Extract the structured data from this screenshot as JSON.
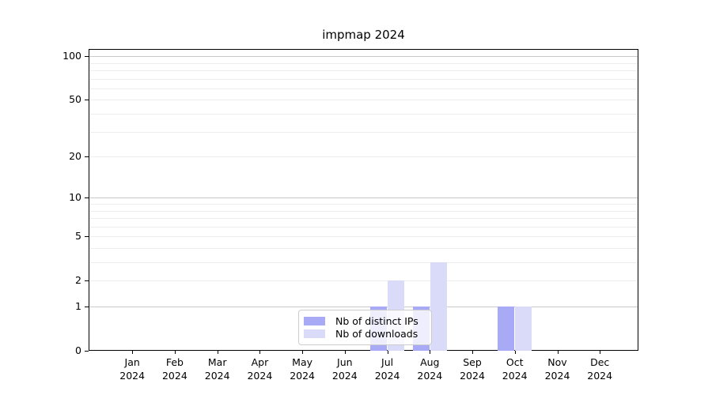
{
  "chart_data": {
    "type": "bar",
    "title": "impmap 2024",
    "categories": [
      "Jan 2024",
      "Feb 2024",
      "Mar 2024",
      "Apr 2024",
      "May 2024",
      "Jun 2024",
      "Jul 2024",
      "Aug 2024",
      "Sep 2024",
      "Oct 2024",
      "Nov 2024",
      "Dec 2024"
    ],
    "x_tick_months": [
      "Jan",
      "Feb",
      "Mar",
      "Apr",
      "May",
      "Jun",
      "Jul",
      "Aug",
      "Sep",
      "Oct",
      "Nov",
      "Dec"
    ],
    "x_tick_year": "2024",
    "series": [
      {
        "name": "Nb of distinct IPs",
        "color": "#a9aaf6",
        "values": [
          0,
          0,
          0,
          0,
          0,
          0,
          1,
          1,
          0,
          1,
          0,
          0
        ]
      },
      {
        "name": "Nb of downloads",
        "color": "#dadbf8",
        "values": [
          0,
          0,
          0,
          0,
          0,
          0,
          2,
          3,
          0,
          1,
          0,
          0
        ]
      }
    ],
    "y_axis": {
      "scale": "log1p",
      "tick_values": [
        100,
        50,
        20,
        10,
        5,
        2,
        1,
        0
      ],
      "major_grid_values": [
        1,
        10,
        100
      ],
      "minor_grid_values": [
        2,
        3,
        4,
        5,
        6,
        7,
        8,
        9,
        20,
        30,
        40,
        50,
        60,
        70,
        80,
        90
      ],
      "ylim": [
        0,
        115
      ]
    },
    "grid": true,
    "legend_position": "inside-lower-center",
    "colors": {
      "major_grid": "#c9c9c9",
      "minor_grid": "#ededed",
      "axis": "#000000",
      "background": "#ffffff"
    }
  }
}
